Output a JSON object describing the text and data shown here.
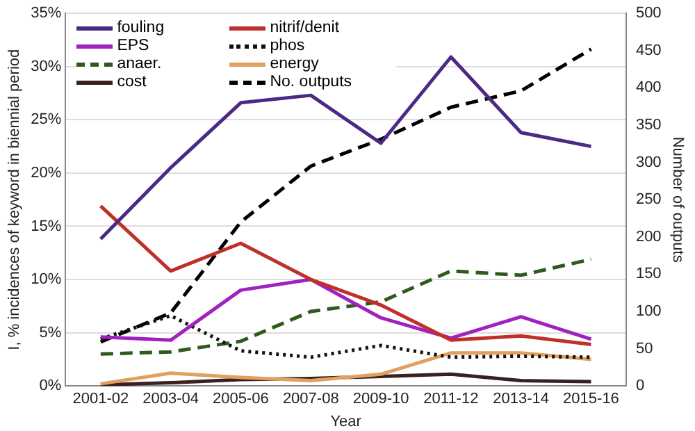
{
  "chart_data": {
    "type": "line",
    "categories": [
      "2001-02",
      "2003-04",
      "2005-06",
      "2007-08",
      "2009-10",
      "2011-12",
      "2013-14",
      "2015-16"
    ],
    "xlabel": "Year",
    "ylabel": "I, % incidences of keyword in biennial period",
    "y2label": "Number of outputs",
    "ylim": [
      0,
      35
    ],
    "yticks": [
      {
        "value": 0,
        "label": "0%"
      },
      {
        "value": 5,
        "label": "5%"
      },
      {
        "value": 10,
        "label": "10%"
      },
      {
        "value": 15,
        "label": "15%"
      },
      {
        "value": 20,
        "label": "20%"
      },
      {
        "value": 25,
        "label": "25%"
      },
      {
        "value": 30,
        "label": "30%"
      },
      {
        "value": 35,
        "label": "35%"
      }
    ],
    "y2lim": [
      0,
      500
    ],
    "y2ticks": [
      0,
      50,
      100,
      150,
      200,
      250,
      300,
      350,
      400,
      450,
      500
    ],
    "grid": "y",
    "legend": "top left",
    "marker": "none",
    "series": [
      {
        "name": "fouling",
        "color": "#4b2a86",
        "line_style": "solid",
        "values": [
          13.8,
          20.5,
          26.6,
          27.3,
          22.8,
          30.9,
          23.8,
          22.5
        ]
      },
      {
        "name": "nitrif/denit",
        "color": "#c0302a",
        "line_style": "solid",
        "values": [
          16.9,
          10.8,
          13.4,
          10.0,
          7.6,
          4.3,
          4.7,
          3.9
        ]
      },
      {
        "name": "EPS",
        "color": "#a020c0",
        "line_style": "solid",
        "values": [
          4.6,
          4.3,
          9.0,
          10.0,
          6.4,
          4.5,
          6.5,
          4.4
        ]
      },
      {
        "name": "phos",
        "color": "#111111",
        "line_style": "dotted",
        "values": [
          4.4,
          6.6,
          3.3,
          2.7,
          3.8,
          2.7,
          2.8,
          2.7
        ]
      },
      {
        "name": "anaer.",
        "color": "#2f5a1e",
        "line_style": "dashed",
        "values": [
          3.0,
          3.2,
          4.2,
          7.0,
          7.9,
          10.8,
          10.4,
          11.9
        ]
      },
      {
        "name": "energy",
        "color": "#e0a060",
        "line_style": "solid",
        "values": [
          0.2,
          1.2,
          0.8,
          0.5,
          1.1,
          3.1,
          3.1,
          2.5
        ]
      },
      {
        "name": "cost",
        "color": "#3a2020",
        "line_style": "solid",
        "values": [
          0.1,
          0.3,
          0.6,
          0.7,
          0.9,
          1.1,
          0.5,
          0.4
        ]
      },
      {
        "name": "No. outputs",
        "color": "#000000",
        "line_style": "dashed",
        "axis": "y2",
        "values": [
          59,
          98,
          220,
          295,
          331,
          374,
          396,
          452
        ]
      }
    ]
  }
}
